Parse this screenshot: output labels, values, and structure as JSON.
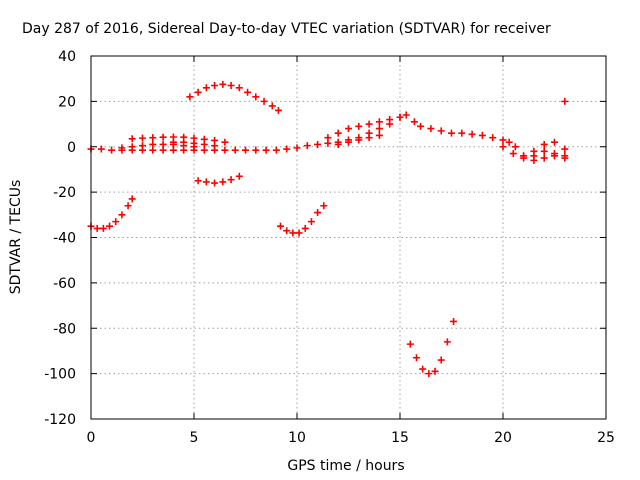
{
  "chart_data": {
    "type": "scatter",
    "title": "Day 287 of 2016, Sidereal Day-to-day VTEC variation (SDTVAR) for receiver",
    "xlabel": "GPS time / hours",
    "ylabel": "SDTVAR / TECUs",
    "xlim": [
      0,
      25
    ],
    "ylim": [
      -120,
      40
    ],
    "xticks": [
      0,
      5,
      10,
      15,
      20,
      25
    ],
    "yticks": [
      40,
      20,
      0,
      -20,
      -40,
      -60,
      -80,
      -100,
      -120
    ],
    "grid": true,
    "legend": "none",
    "marker": "plus",
    "color": "#ff0000",
    "series": [
      {
        "x": [
          0.0,
          0.5,
          1.0,
          1.5,
          2.0,
          2.5,
          3.0,
          3.5,
          4.0,
          4.5,
          5.0,
          5.5,
          6.0,
          6.5,
          7.0,
          7.5,
          8.0,
          8.5,
          9.0,
          9.5,
          10.0,
          10.5,
          11.0,
          11.5,
          12.0,
          12.5,
          13.0,
          13.5,
          14.0,
          14.5,
          15.0,
          15.3,
          15.7,
          16.0,
          16.5,
          17.0,
          17.5,
          18.0,
          18.5,
          19.0,
          19.5,
          20.0,
          20.3,
          20.6,
          21.0,
          21.5,
          22.0,
          22.5,
          23.0
        ],
        "y": [
          -1,
          -1,
          -1.5,
          -1.5,
          -1.5,
          -1.5,
          -1.5,
          -1.5,
          -1.5,
          -1.5,
          -1.5,
          -1.5,
          -1.5,
          -1.5,
          -1.5,
          -1.5,
          -1.5,
          -1.5,
          -1.5,
          -1,
          -0.5,
          0.5,
          1,
          1.5,
          2,
          3,
          4,
          6,
          8,
          10,
          13,
          14,
          11,
          9,
          8,
          7,
          6,
          6,
          5.5,
          5,
          4,
          3,
          2,
          0,
          -4,
          -6,
          -5,
          -4,
          -4
        ]
      },
      {
        "x": [
          11.5,
          12.0,
          12.5,
          13.0,
          13.5,
          14.0,
          14.5,
          15.0
        ],
        "y": [
          4,
          6,
          8,
          9,
          10,
          11,
          12,
          13
        ]
      },
      {
        "x": [
          12.0,
          12.5,
          13.0,
          13.5,
          14.0
        ],
        "y": [
          1,
          2,
          3,
          4,
          5
        ]
      },
      {
        "x": [
          2.0,
          2.5,
          3.0,
          3.5,
          4.0,
          4.5,
          5.0,
          5.5,
          6.0,
          6.5
        ],
        "y": [
          3.5,
          3.8,
          4,
          4.2,
          4.3,
          4.2,
          3.8,
          3.3,
          2.8,
          2
        ]
      },
      {
        "x": [
          1.5,
          2.0,
          2.5,
          3.0,
          3.5,
          4.0,
          4.5,
          5.0
        ],
        "y": [
          -0.5,
          0,
          0.5,
          1,
          1,
          1,
          0.5,
          0
        ]
      },
      {
        "x": [
          4.0,
          4.5,
          5.0,
          5.5,
          6.0
        ],
        "y": [
          2,
          2,
          1.5,
          1,
          0.5
        ]
      },
      {
        "x": [
          20.0,
          20.5,
          21.0,
          21.5,
          22.0,
          22.5,
          23.0
        ],
        "y": [
          0,
          -3,
          -5,
          -4,
          -2,
          -3,
          -5
        ]
      },
      {
        "x": [
          21.0,
          21.5,
          22.0,
          22.5,
          23.0
        ],
        "y": [
          -4,
          -2,
          1,
          2,
          -1
        ]
      },
      {
        "x": [
          4.8,
          5.2,
          5.6,
          6.0,
          6.4,
          6.8,
          7.2,
          7.6,
          8.0,
          8.4,
          8.8,
          9.1
        ],
        "y": [
          22,
          24,
          26,
          27,
          27.5,
          27,
          26,
          24,
          22,
          20,
          18,
          16
        ]
      },
      {
        "x": [
          5.2,
          5.6,
          6.0,
          6.4,
          6.8,
          7.2
        ],
        "y": [
          -15,
          -15.5,
          -16,
          -15.5,
          -14.5,
          -13
        ]
      },
      {
        "x": [
          0.0,
          0.3,
          0.6,
          0.9,
          1.2,
          1.5,
          1.8,
          2.0
        ],
        "y": [
          -35,
          -36,
          -36,
          -35,
          -33,
          -30,
          -26,
          -23
        ]
      },
      {
        "x": [
          9.2,
          9.5,
          9.8,
          10.1,
          10.4,
          10.7,
          11.0,
          11.3
        ],
        "y": [
          -35,
          -37,
          -38,
          -38,
          -36,
          -33,
          -29,
          -26
        ]
      },
      {
        "x": [
          15.5,
          15.8,
          16.1,
          16.4,
          16.7,
          17.0,
          17.3,
          17.6
        ],
        "y": [
          -87,
          -93,
          -98,
          -100,
          -99,
          -94,
          -86,
          -77
        ]
      },
      {
        "x": [
          23.0
        ],
        "y": [
          20
        ]
      }
    ]
  }
}
